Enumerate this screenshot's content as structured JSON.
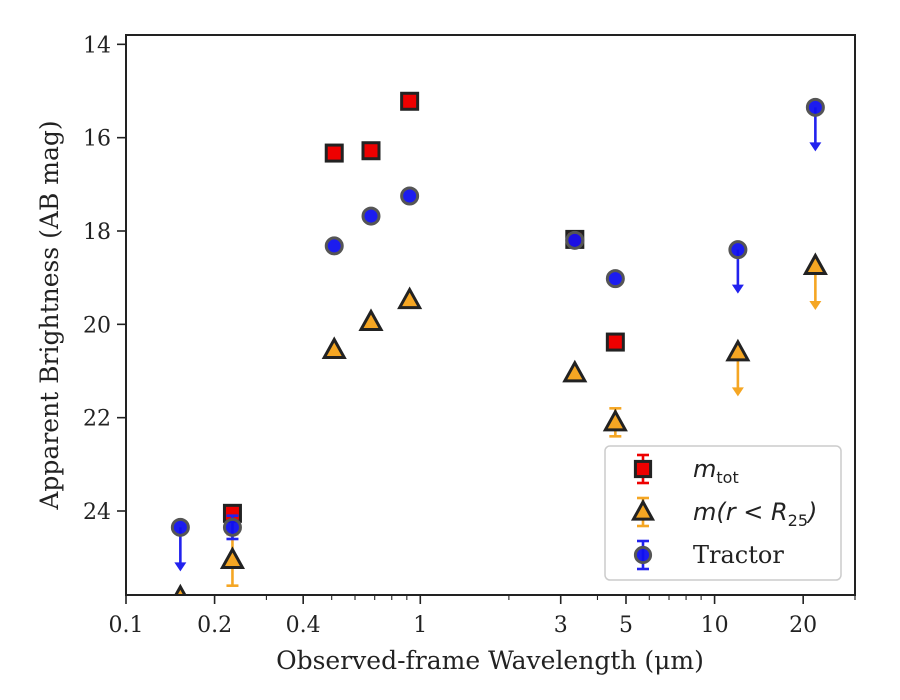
{
  "chart_data": {
    "type": "scatter",
    "title": "",
    "xlabel": "Observed-frame Wavelength (μm)",
    "ylabel": "Apparent Brightness (AB mag)",
    "xscale": "log",
    "xlim": [
      0.1,
      30
    ],
    "ylim": [
      25.8,
      13.8
    ],
    "y_inverted": true,
    "xticks": [
      {
        "value": 0.1,
        "label": "0.1"
      },
      {
        "value": 0.2,
        "label": "0.2"
      },
      {
        "value": 0.4,
        "label": "0.4"
      },
      {
        "value": 1,
        "label": "1"
      },
      {
        "value": 3,
        "label": "3"
      },
      {
        "value": 5,
        "label": "5"
      },
      {
        "value": 10,
        "label": "10"
      },
      {
        "value": 20,
        "label": "20"
      }
    ],
    "yticks": [
      {
        "value": 14,
        "label": "14"
      },
      {
        "value": 16,
        "label": "16"
      },
      {
        "value": 18,
        "label": "18"
      },
      {
        "value": 20,
        "label": "20"
      },
      {
        "value": 22,
        "label": "22"
      },
      {
        "value": 24,
        "label": "24"
      }
    ],
    "grid": false,
    "legend_position": "lower-right",
    "series": [
      {
        "name": "m_tot",
        "legend": {
          "main": "m",
          "sub": "tot",
          "suffix": ""
        },
        "marker": "square",
        "color": "#ee0000",
        "edge": "#222222",
        "err_color": "#ee0000",
        "points": [
          {
            "x": 0.23,
            "y": 24.05
          },
          {
            "x": 0.51,
            "y": 16.33
          },
          {
            "x": 0.68,
            "y": 16.28
          },
          {
            "x": 0.92,
            "y": 15.22
          },
          {
            "x": 3.35,
            "y": 18.18
          },
          {
            "x": 4.6,
            "y": 20.38
          }
        ]
      },
      {
        "name": "m(r < R_25)",
        "legend": {
          "main": "m(r < R",
          "sub": "25",
          "suffix": ")"
        },
        "marker": "triangle",
        "color": "#f5a623",
        "edge": "#222222",
        "err_color": "#f5a623",
        "points": [
          {
            "x": 0.153,
            "y": 25.85
          },
          {
            "x": 0.23,
            "y": 25.05,
            "err": 0.55
          },
          {
            "x": 0.51,
            "y": 20.55
          },
          {
            "x": 0.68,
            "y": 19.95
          },
          {
            "x": 0.92,
            "y": 19.48
          },
          {
            "x": 3.35,
            "y": 21.05
          },
          {
            "x": 4.6,
            "y": 22.1,
            "err": 0.3
          },
          {
            "x": 12.0,
            "y": 20.6,
            "upper_limit": true
          },
          {
            "x": 22.0,
            "y": 18.75,
            "upper_limit": true
          }
        ]
      },
      {
        "name": "Tractor",
        "legend": {
          "main": "Tractor",
          "sub": "",
          "suffix": ""
        },
        "marker": "circle",
        "color": "#1010ee",
        "edge": "#555555",
        "err_color": "#2222ee",
        "points": [
          {
            "x": 0.153,
            "y": 24.35,
            "upper_limit": true
          },
          {
            "x": 0.23,
            "y": 24.35,
            "err": 0.25
          },
          {
            "x": 0.51,
            "y": 18.32
          },
          {
            "x": 0.68,
            "y": 17.68
          },
          {
            "x": 0.92,
            "y": 17.25
          },
          {
            "x": 3.35,
            "y": 18.2
          },
          {
            "x": 4.6,
            "y": 19.02
          },
          {
            "x": 12.0,
            "y": 18.4,
            "upper_limit": true
          },
          {
            "x": 22.0,
            "y": 15.35,
            "upper_limit": true
          }
        ]
      }
    ]
  }
}
